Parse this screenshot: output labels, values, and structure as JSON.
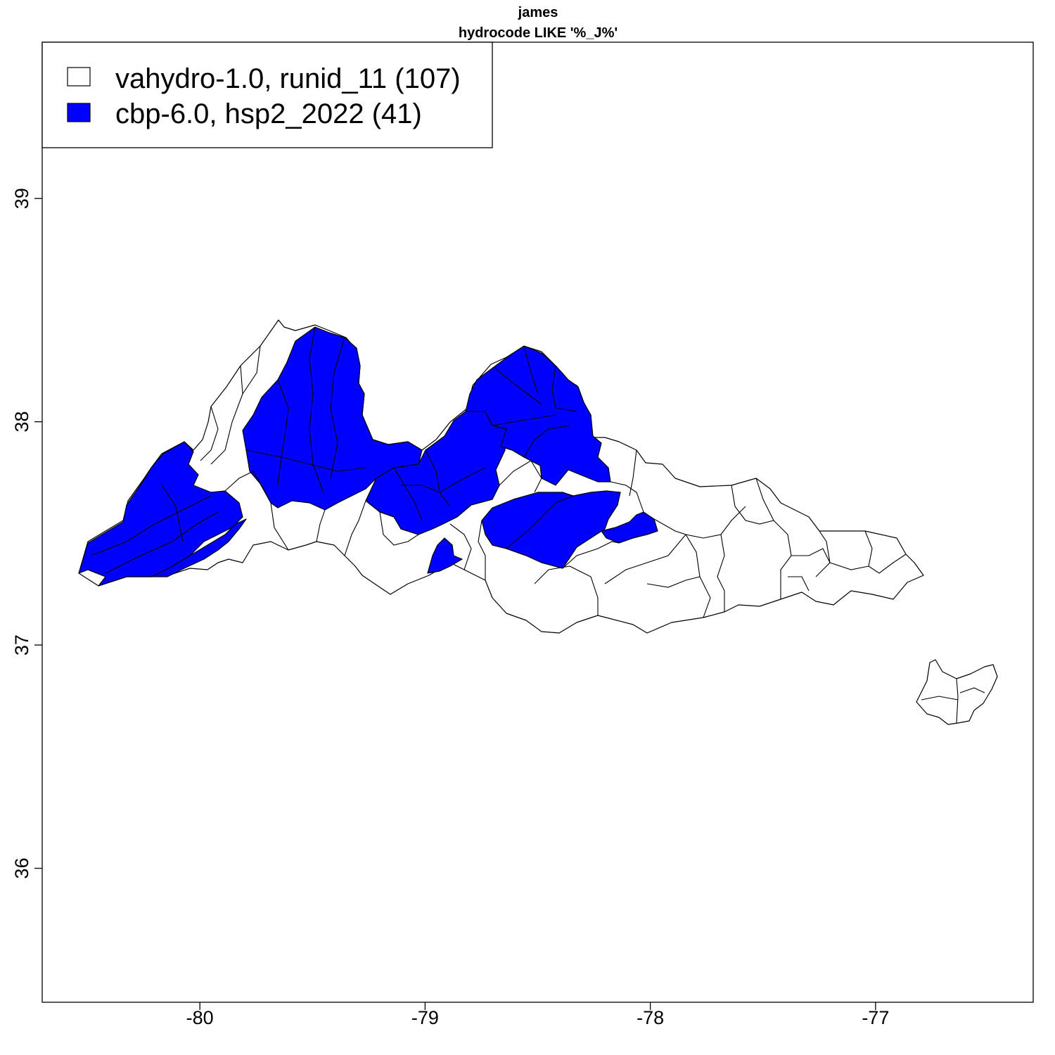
{
  "title": "james",
  "subtitle": "hydrocode LIKE '%_J%'",
  "axes": {
    "x_ticks": [
      "-80",
      "-79",
      "-78",
      "-77"
    ],
    "y_ticks": [
      "39",
      "38",
      "37",
      "36"
    ]
  },
  "legend": {
    "position": "top-left",
    "items": [
      {
        "label": "vahydro-1.0, runid_11 (107)",
        "fill": "#ffffff"
      },
      {
        "label": "cbp-6.0, hsp2_2022 (41)",
        "fill": "#0000ff"
      }
    ]
  },
  "colors": {
    "highlight": "#0000ff",
    "base": "#ffffff",
    "outline": "#000000"
  },
  "chart_data": {
    "type": "map",
    "title": "james",
    "subtitle": "hydrocode LIKE '%_J%'",
    "xlim": [
      -80.7,
      -76.3
    ],
    "ylim": [
      35.4,
      39.7
    ],
    "x_ticks": [
      -80,
      -79,
      -78,
      -77
    ],
    "y_ticks": [
      39,
      38,
      37,
      36
    ],
    "legend_position": "top-left",
    "series": [
      {
        "name": "vahydro-1.0, runid_11",
        "count": 107,
        "color": "#ffffff"
      },
      {
        "name": "cbp-6.0, hsp2_2022",
        "count": 41,
        "color": "#0000ff"
      }
    ]
  }
}
